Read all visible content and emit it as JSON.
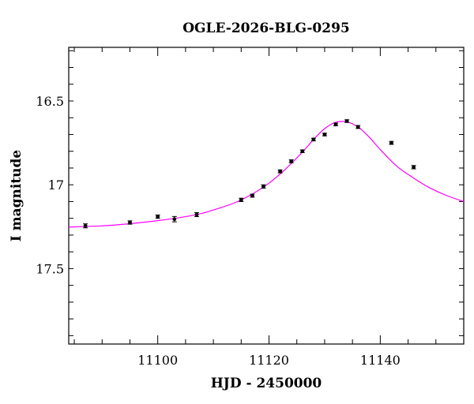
{
  "chart_data": {
    "type": "scatter",
    "title": "OGLE-2026-BLG-0295",
    "xlabel": "HJD - 2450000",
    "ylabel": "I magnitude",
    "xlim": [
      11084,
      11155
    ],
    "ylim": [
      17.95,
      16.18
    ],
    "y_inverted": true,
    "grid": false,
    "x_ticks": [
      11100,
      11120,
      11140
    ],
    "x_tick_labels": [
      "11100",
      "11120",
      "11140"
    ],
    "y_ticks": [
      16.5,
      17,
      17.5
    ],
    "y_tick_labels": [
      "16.5",
      "17",
      "17.5"
    ],
    "series": [
      {
        "kind": "points",
        "color": "#000000",
        "x": [
          11087,
          11095,
          11100,
          11103,
          11107,
          11115,
          11117,
          11119,
          11122,
          11124,
          11126,
          11128,
          11130,
          11132,
          11134,
          11136,
          11142,
          11146
        ],
        "y": [
          17.245,
          17.225,
          17.19,
          17.205,
          17.178,
          17.09,
          17.065,
          17.01,
          16.92,
          16.86,
          16.8,
          16.73,
          16.7,
          16.64,
          16.62,
          16.655,
          16.75,
          16.895
        ],
        "err": [
          0.012,
          0.01,
          0.01,
          0.016,
          0.012,
          0.01,
          0.009,
          0.01,
          0.009,
          0.009,
          0.008,
          0.008,
          0.008,
          0.008,
          0.008,
          0.009,
          0.009,
          0.01
        ]
      },
      {
        "kind": "model-curve",
        "color": "#ff00ff",
        "x": [
          11084,
          11090,
          11095,
          11100,
          11105,
          11108,
          11111,
          11114,
          11117,
          11120,
          11123,
          11126,
          11128,
          11130,
          11132,
          11134,
          11136,
          11138,
          11140,
          11143,
          11146,
          11149,
          11152,
          11155
        ],
        "y": [
          17.252,
          17.245,
          17.232,
          17.214,
          17.19,
          17.17,
          17.14,
          17.105,
          17.055,
          16.99,
          16.905,
          16.805,
          16.73,
          16.665,
          16.627,
          16.625,
          16.655,
          16.715,
          16.79,
          16.89,
          16.96,
          17.02,
          17.065,
          17.1
        ]
      }
    ]
  }
}
